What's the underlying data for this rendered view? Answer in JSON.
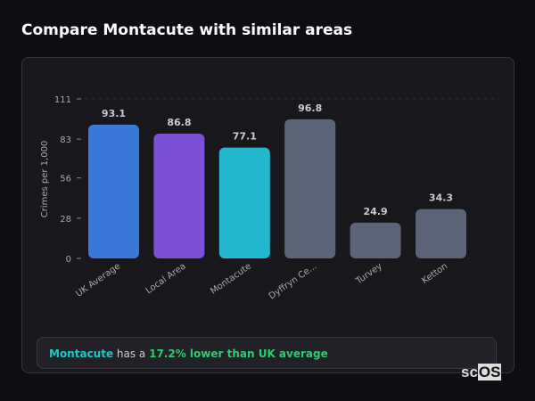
{
  "title": "Compare Montacute with similar areas",
  "chart_data": {
    "type": "bar",
    "categories": [
      "UK Average",
      "Local Area",
      "Montacute",
      "Dyffryn Ce...",
      "Turvey",
      "Ketton"
    ],
    "values": [
      93.1,
      86.8,
      77.1,
      96.8,
      24.9,
      34.3
    ],
    "colors": [
      "#3b78dc",
      "#7b52d6",
      "#22b8cf",
      "#5b6577",
      "#5b6577",
      "#5b6577"
    ],
    "ylabel": "Crimes per 1,000",
    "ylim": [
      0,
      111
    ],
    "yticks": [
      0,
      28,
      56,
      83,
      111
    ],
    "grid": "top dashed line"
  },
  "footer": {
    "area": "Montacute",
    "mid": " has a ",
    "highlight": "17.2% lower than UK average"
  },
  "logo": "scOS"
}
